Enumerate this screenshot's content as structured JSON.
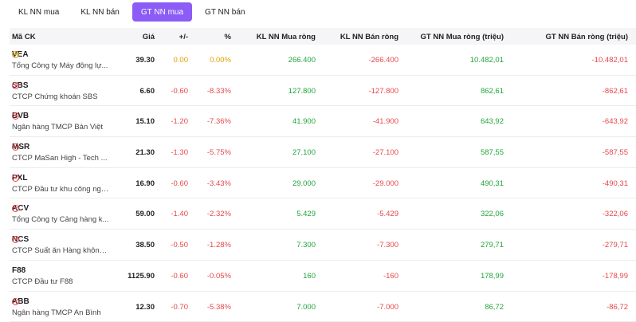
{
  "tabs": [
    {
      "label": "KL NN mua",
      "active": false
    },
    {
      "label": "KL NN bán",
      "active": false
    },
    {
      "label": "GT NN mua",
      "active": true
    },
    {
      "label": "GT NN bán",
      "active": false
    }
  ],
  "colors": {
    "accent": "#8b5cf6",
    "up": "#22a53b",
    "down": "#e5484d",
    "reference": "#e0a000"
  },
  "table": {
    "headers": {
      "ticker": "Mã CK",
      "price": "Giá",
      "change": "+/-",
      "percent": "%",
      "vol_buy": "KL NN Mua ròng",
      "vol_sell": "KL NN Bán ròng",
      "val_buy": "GT NN Mua ròng (triệu)",
      "val_sell": "GT NN Bán ròng (triệu)"
    },
    "rows": [
      {
        "ticker": "VEA",
        "name": "Tổng Công ty Máy động lự...",
        "price": "39.30",
        "change": "0.00",
        "percent": "0.00%",
        "vol_buy": "266.400",
        "vol_sell": "-266.400",
        "val_buy": "10.482,01",
        "val_sell": "-10.482,01",
        "icon": "reference-down-icon"
      },
      {
        "ticker": "SBS",
        "name": "CTCP Chứng khoán SBS",
        "price": "6.60",
        "change": "-0.60",
        "percent": "-8.33%",
        "vol_buy": "127.800",
        "vol_sell": "-127.800",
        "val_buy": "862,61",
        "val_sell": "-862,61",
        "icon": "down-icon"
      },
      {
        "ticker": "BVB",
        "name": "Ngân hàng TMCP Bản Việt",
        "price": "15.10",
        "change": "-1.20",
        "percent": "-7.36%",
        "vol_buy": "41.900",
        "vol_sell": "-41.900",
        "val_buy": "643,92",
        "val_sell": "-643,92",
        "icon": "down-icon"
      },
      {
        "ticker": "MSR",
        "name": "CTCP MaSan High - Tech ...",
        "price": "21.30",
        "change": "-1.30",
        "percent": "-5.75%",
        "vol_buy": "27.100",
        "vol_sell": "-27.100",
        "val_buy": "587,55",
        "val_sell": "-587,55",
        "icon": "down-icon"
      },
      {
        "ticker": "PXL",
        "name": "CTCP Đầu tư khu công ngh...",
        "price": "16.90",
        "change": "-0.60",
        "percent": "-3.43%",
        "vol_buy": "29.000",
        "vol_sell": "-29.000",
        "val_buy": "490,31",
        "val_sell": "-490,31",
        "icon": "down-icon"
      },
      {
        "ticker": "ACV",
        "name": "Tổng Công ty Cảng hàng k...",
        "price": "59.00",
        "change": "-1.40",
        "percent": "-2.32%",
        "vol_buy": "5.429",
        "vol_sell": "-5.429",
        "val_buy": "322,06",
        "val_sell": "-322,06",
        "icon": "down-icon"
      },
      {
        "ticker": "NCS",
        "name": "CTCP Suất ăn Hàng không ...",
        "price": "38.50",
        "change": "-0.50",
        "percent": "-1.28%",
        "vol_buy": "7.300",
        "vol_sell": "-7.300",
        "val_buy": "279,71",
        "val_sell": "-279,71",
        "icon": "down-icon"
      },
      {
        "ticker": "F88",
        "name": "CTCP Đầu tư F88",
        "price": "1125.90",
        "change": "-0.60",
        "percent": "-0.05%",
        "vol_buy": "160",
        "vol_sell": "-160",
        "val_buy": "178,99",
        "val_sell": "-178,99",
        "icon": "none"
      },
      {
        "ticker": "ABB",
        "name": "Ngân hàng TMCP An Bình",
        "price": "12.30",
        "change": "-0.70",
        "percent": "-5.38%",
        "vol_buy": "7.000",
        "vol_sell": "-7.000",
        "val_buy": "86,72",
        "val_sell": "-86,72",
        "icon": "down-icon"
      }
    ]
  }
}
